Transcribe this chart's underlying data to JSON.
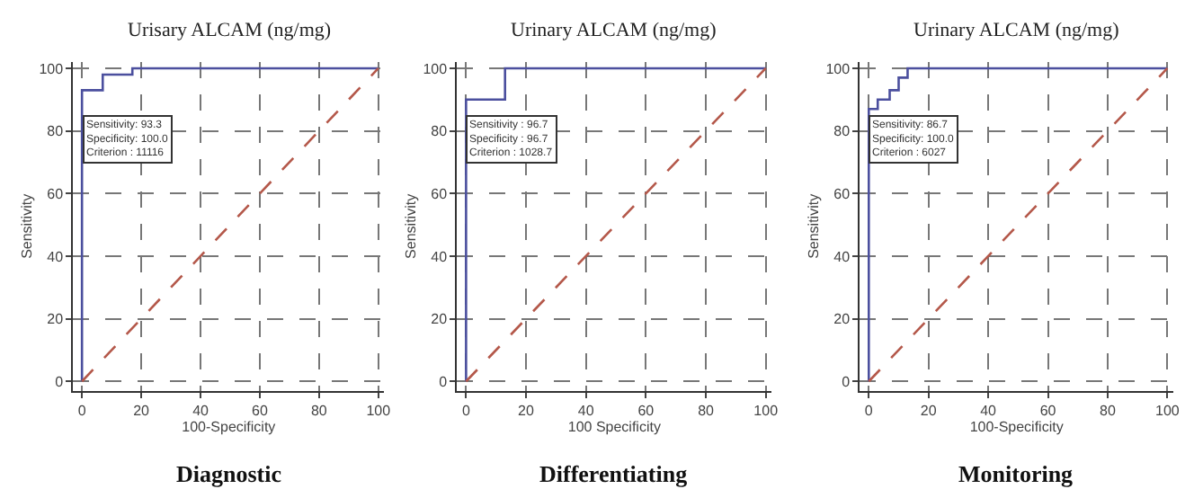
{
  "chart_data": [
    {
      "type": "line",
      "title": "Urisary ALCAM (ng/mg)",
      "xlabel": "100-Specificity",
      "ylabel": "Sensitivity",
      "xlim": [
        -3,
        102
      ],
      "ylim": [
        -3,
        102
      ],
      "xticks": [
        0,
        20,
        40,
        60,
        80,
        100
      ],
      "yticks": [
        0,
        20,
        40,
        60,
        80,
        100
      ],
      "grid": true,
      "series": [
        {
          "color": "#4b4f9e",
          "line_style": "solid",
          "x": [
            0,
            0,
            7,
            7,
            17,
            17,
            100
          ],
          "values": [
            0,
            93,
            93,
            98,
            98,
            100,
            100
          ]
        },
        {
          "color": "#b4584a",
          "line_style": "dashed",
          "x": [
            0,
            100
          ],
          "values": [
            0,
            100
          ]
        }
      ],
      "annotations": [
        "Sensitivity: 93.3\nSpecificity: 100.0\nCriterion : 11116",
        "Diagnostic"
      ]
    },
    {
      "type": "line",
      "title": "Urinary ALCAM (ng/mg)",
      "xlabel": "100 Specificity",
      "ylabel": "Sensitivity",
      "xlim": [
        -3,
        102
      ],
      "ylim": [
        -3,
        102
      ],
      "xticks": [
        0,
        20,
        40,
        60,
        80,
        100
      ],
      "yticks": [
        0,
        20,
        40,
        60,
        80,
        100
      ],
      "grid": true,
      "series": [
        {
          "color": "#4b4f9e",
          "line_style": "solid",
          "x": [
            0,
            0,
            13,
            13,
            100
          ],
          "values": [
            0,
            90,
            90,
            100,
            100
          ]
        },
        {
          "color": "#b4584a",
          "line_style": "dashed",
          "x": [
            0,
            100
          ],
          "values": [
            0,
            100
          ]
        }
      ],
      "annotations": [
        "Sensitivity : 96.7\nSpecificity : 96.7\nCriterion : 1028.7",
        "Differentiating"
      ]
    },
    {
      "type": "line",
      "title": "Urinary ALCAM (ng/mg)",
      "xlabel": "100-Specificity",
      "ylabel": "Sensitivity",
      "xlim": [
        -3,
        102
      ],
      "ylim": [
        -3,
        102
      ],
      "xticks": [
        0,
        20,
        40,
        60,
        80,
        100
      ],
      "yticks": [
        0,
        20,
        40,
        60,
        80,
        100
      ],
      "grid": true,
      "series": [
        {
          "color": "#4b4f9e",
          "line_style": "solid",
          "x": [
            0,
            0,
            3,
            3,
            7,
            7,
            10,
            10,
            13,
            13,
            100
          ],
          "values": [
            0,
            87,
            87,
            90,
            90,
            93,
            93,
            97,
            97,
            100,
            100
          ]
        },
        {
          "color": "#b4584a",
          "line_style": "dashed",
          "x": [
            0,
            100
          ],
          "values": [
            0,
            100
          ]
        }
      ],
      "annotations": [
        "Sensitivity: 86.7\nSpecificity: 100.0\nCriterion : 6027",
        "Monitoring"
      ]
    }
  ]
}
